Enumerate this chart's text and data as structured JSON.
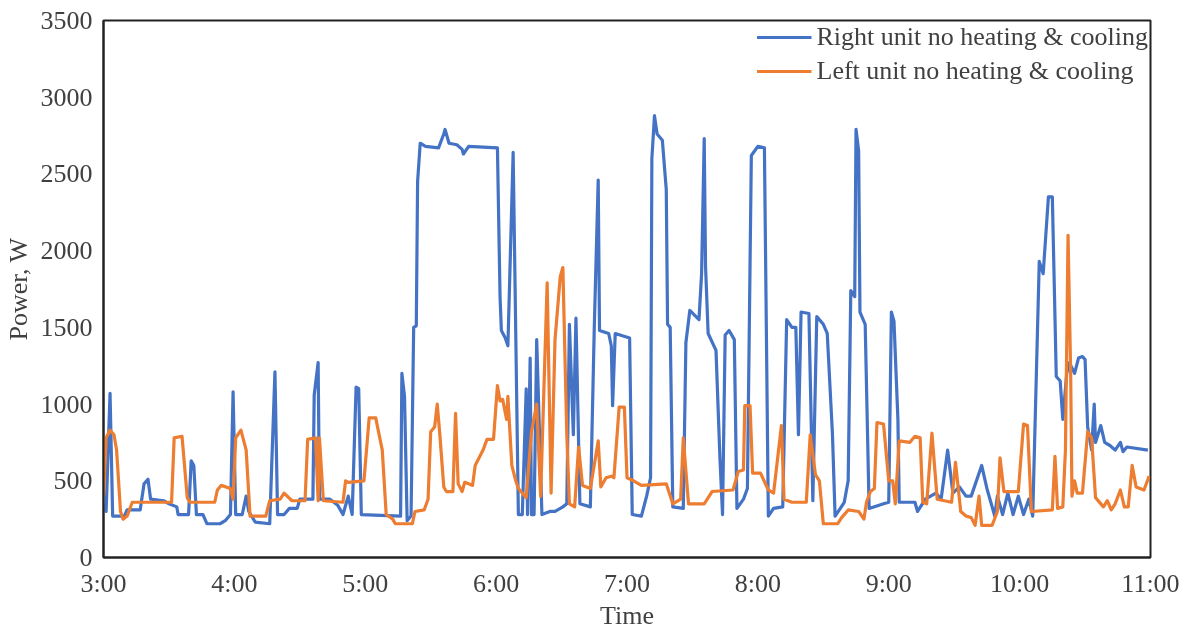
{
  "chart_data": {
    "type": "line",
    "xlabel": "Time",
    "ylabel": "Power, W",
    "xlim": [
      3,
      11
    ],
    "xticks": [
      {
        "value": 3,
        "label": "3:00"
      },
      {
        "value": 4,
        "label": "4:00"
      },
      {
        "value": 5,
        "label": "5:00"
      },
      {
        "value": 6,
        "label": "6:00"
      },
      {
        "value": 7,
        "label": "7:00"
      },
      {
        "value": 8,
        "label": "8:00"
      },
      {
        "value": 9,
        "label": "9:00"
      },
      {
        "value": 10,
        "label": "10:00"
      },
      {
        "value": 11,
        "label": "11:00"
      }
    ],
    "ylim": [
      0,
      3500
    ],
    "yticks": [
      0,
      500,
      1000,
      1500,
      2000,
      2500,
      3000,
      3500
    ],
    "grid": false,
    "legend": "top right",
    "marker": "none",
    "line_style": "solid",
    "series": [
      {
        "name": "Right unit no heating & cooling",
        "color": "#4472c4",
        "x": [
          3.0,
          3.02,
          3.05,
          3.07,
          3.16,
          3.18,
          3.28,
          3.31,
          3.34,
          3.36,
          3.46,
          3.5,
          3.56,
          3.57,
          3.65,
          3.67,
          3.69,
          3.71,
          3.76,
          3.79,
          3.89,
          3.93,
          3.97,
          3.99,
          4.01,
          4.06,
          4.09,
          4.11,
          4.16,
          4.27,
          4.31,
          4.33,
          4.38,
          4.42,
          4.48,
          4.5,
          4.6,
          4.61,
          4.64,
          4.65,
          4.73,
          4.79,
          4.83,
          4.87,
          4.9,
          4.93,
          4.95,
          4.97,
          5.27,
          5.28,
          5.3,
          5.32,
          5.35,
          5.37,
          5.39,
          5.4,
          5.42,
          5.46,
          5.56,
          5.6,
          5.61,
          5.64,
          5.7,
          5.74,
          5.75,
          5.79,
          6.01,
          6.03,
          6.04,
          6.07,
          6.09,
          6.13,
          6.17,
          6.2,
          6.23,
          6.24,
          6.26,
          6.27,
          6.29,
          6.31,
          6.35,
          6.41,
          6.45,
          6.51,
          6.54,
          6.56,
          6.59,
          6.61,
          6.64,
          6.72,
          6.75,
          6.78,
          6.79,
          6.86,
          6.88,
          6.89,
          6.91,
          7.02,
          7.04,
          7.11,
          7.15,
          7.18,
          7.19,
          7.21,
          7.23,
          7.27,
          7.3,
          7.31,
          7.33,
          7.35,
          7.43,
          7.45,
          7.48,
          7.55,
          7.57,
          7.59,
          7.6,
          7.62,
          7.68,
          7.71,
          7.73,
          7.75,
          7.78,
          7.82,
          7.84,
          7.89,
          7.92,
          7.95,
          8.0,
          8.05,
          8.08,
          8.12,
          8.19,
          8.22,
          8.26,
          8.29,
          8.31,
          8.33,
          8.39,
          8.42,
          8.45,
          8.5,
          8.53,
          8.57,
          8.59,
          8.63,
          8.66,
          8.69,
          8.71,
          8.74,
          8.75,
          8.77,
          8.78,
          8.82,
          8.85,
          8.96,
          9.0,
          9.02,
          9.04,
          9.07,
          9.08,
          9.2,
          9.22,
          9.28,
          9.36,
          9.4,
          9.45,
          9.49,
          9.54,
          9.59,
          9.63,
          9.71,
          9.75,
          9.81,
          9.83,
          9.87,
          9.91,
          9.95,
          9.99,
          10.03,
          10.07,
          10.1,
          10.15,
          10.18,
          10.22,
          10.25,
          10.28,
          10.31,
          10.33,
          10.36,
          10.38,
          10.42,
          10.45,
          10.48,
          10.5,
          10.52,
          10.55,
          10.57,
          10.58,
          10.62,
          10.65,
          10.69,
          10.73,
          10.77,
          10.79,
          10.82,
          10.98
        ],
        "values": [
          350,
          300,
          1070,
          270,
          270,
          310,
          310,
          480,
          510,
          380,
          370,
          350,
          330,
          280,
          280,
          630,
          600,
          280,
          280,
          220,
          220,
          240,
          280,
          1080,
          280,
          280,
          400,
          300,
          230,
          220,
          1210,
          280,
          280,
          320,
          320,
          380,
          380,
          1060,
          1270,
          380,
          380,
          340,
          280,
          400,
          280,
          1110,
          1100,
          280,
          270,
          1200,
          1050,
          240,
          270,
          1500,
          1510,
          2450,
          2700,
          2680,
          2670,
          2760,
          2790,
          2700,
          2690,
          2660,
          2630,
          2680,
          2670,
          1700,
          1480,
          1430,
          1380,
          2640,
          280,
          280,
          1100,
          280,
          1300,
          280,
          280,
          1420,
          280,
          300,
          300,
          330,
          350,
          1520,
          800,
          1560,
          350,
          330,
          1500,
          2460,
          1480,
          1460,
          1380,
          990,
          1460,
          1430,
          280,
          270,
          400,
          520,
          2600,
          2880,
          2760,
          2720,
          2400,
          1520,
          1500,
          330,
          320,
          1400,
          1610,
          1550,
          1850,
          2730,
          1900,
          1460,
          1350,
          650,
          280,
          1450,
          1480,
          1420,
          320,
          380,
          450,
          2620,
          2680,
          2670,
          270,
          320,
          330,
          1550,
          1500,
          1500,
          800,
          1600,
          1590,
          370,
          1570,
          1520,
          1460,
          800,
          270,
          320,
          360,
          500,
          1740,
          1700,
          2790,
          2650,
          1600,
          1520,
          320,
          350,
          360,
          1600,
          1540,
          900,
          360,
          360,
          300,
          380,
          420,
          380,
          700,
          420,
          460,
          400,
          400,
          600,
          450,
          270,
          400,
          280,
          420,
          280,
          400,
          280,
          380,
          270,
          1930,
          1850,
          2350,
          2350,
          1180,
          1150,
          900,
          1200,
          1270,
          1200,
          1300,
          1310,
          1290,
          850,
          700,
          1000,
          750,
          860,
          750,
          730,
          700,
          750,
          690,
          720,
          700
        ]
      },
      {
        "name": "Left unit no heating & cooling",
        "color": "#ed7d31",
        "x": [
          3.0,
          3.02,
          3.05,
          3.08,
          3.1,
          3.13,
          3.15,
          3.18,
          3.22,
          3.52,
          3.54,
          3.6,
          3.64,
          3.66,
          3.85,
          3.87,
          3.9,
          3.97,
          3.99,
          4.01,
          4.05,
          4.09,
          4.12,
          4.24,
          4.27,
          4.35,
          4.38,
          4.44,
          4.54,
          4.56,
          4.62,
          4.64,
          4.65,
          4.68,
          4.83,
          4.85,
          4.87,
          4.99,
          5.03,
          5.08,
          5.13,
          5.16,
          5.21,
          5.23,
          5.36,
          5.38,
          5.45,
          5.48,
          5.5,
          5.53,
          5.55,
          5.57,
          5.6,
          5.62,
          5.67,
          5.69,
          5.71,
          5.74,
          5.76,
          5.79,
          5.82,
          5.84,
          5.9,
          5.93,
          5.98,
          6.01,
          6.03,
          6.05,
          6.08,
          6.09,
          6.12,
          6.15,
          6.17,
          6.23,
          6.27,
          6.31,
          6.34,
          6.39,
          6.42,
          6.45,
          6.49,
          6.51,
          6.54,
          6.56,
          6.6,
          6.63,
          6.66,
          6.72,
          6.78,
          6.8,
          6.84,
          6.88,
          6.9,
          6.94,
          6.98,
          7.0,
          7.05,
          7.11,
          7.3,
          7.35,
          7.41,
          7.43,
          7.47,
          7.59,
          7.65,
          7.81,
          7.85,
          7.89,
          7.9,
          7.94,
          7.96,
          8.02,
          8.08,
          8.12,
          8.18,
          8.2,
          8.26,
          8.37,
          8.4,
          8.44,
          8.47,
          8.5,
          8.61,
          8.64,
          8.69,
          8.77,
          8.81,
          8.83,
          8.86,
          8.89,
          8.91,
          8.96,
          9.0,
          9.03,
          9.05,
          9.08,
          9.16,
          9.2,
          9.24,
          9.26,
          9.29,
          9.33,
          9.37,
          9.48,
          9.51,
          9.55,
          9.59,
          9.63,
          9.66,
          9.69,
          9.71,
          9.79,
          9.83,
          9.85,
          9.88,
          9.99,
          10.03,
          10.06,
          10.09,
          10.25,
          10.27,
          10.29,
          10.33,
          10.35,
          10.37,
          10.39,
          10.4,
          10.42,
          10.44,
          10.48,
          10.52,
          10.55,
          10.58,
          10.64,
          10.67,
          10.7,
          10.73,
          10.77,
          10.8,
          10.83,
          10.86,
          10.89,
          10.95,
          10.99
        ],
        "values": [
          400,
          780,
          830,
          800,
          700,
          300,
          250,
          270,
          360,
          360,
          780,
          790,
          390,
          360,
          360,
          440,
          470,
          450,
          380,
          780,
          830,
          700,
          270,
          270,
          370,
          380,
          420,
          370,
          370,
          770,
          780,
          370,
          780,
          370,
          360,
          500,
          490,
          500,
          910,
          910,
          700,
          280,
          250,
          220,
          220,
          300,
          310,
          380,
          820,
          850,
          1000,
          800,
          460,
          430,
          430,
          940,
          480,
          430,
          490,
          480,
          470,
          600,
          700,
          770,
          770,
          1120,
          1020,
          1030,
          900,
          1050,
          600,
          500,
          450,
          390,
          820,
          1000,
          400,
          1790,
          420,
          1420,
          1830,
          1890,
          800,
          350,
          330,
          720,
          470,
          450,
          760,
          460,
          520,
          530,
          520,
          980,
          980,
          520,
          500,
          470,
          480,
          350,
          380,
          780,
          350,
          350,
          430,
          440,
          560,
          570,
          990,
          990,
          550,
          550,
          440,
          420,
          860,
          380,
          360,
          360,
          800,
          540,
          500,
          220,
          220,
          260,
          310,
          300,
          250,
          360,
          430,
          450,
          880,
          870,
          500,
          500,
          350,
          760,
          750,
          790,
          780,
          360,
          350,
          810,
          380,
          360,
          620,
          300,
          270,
          260,
          210,
          400,
          210,
          210,
          300,
          650,
          430,
          430,
          870,
          860,
          300,
          310,
          660,
          320,
          330,
          700,
          2100,
          1200,
          400,
          500,
          420,
          420,
          820,
          780,
          390,
          330,
          370,
          310,
          350,
          440,
          330,
          330,
          600,
          460,
          440,
          530
        ]
      }
    ]
  }
}
